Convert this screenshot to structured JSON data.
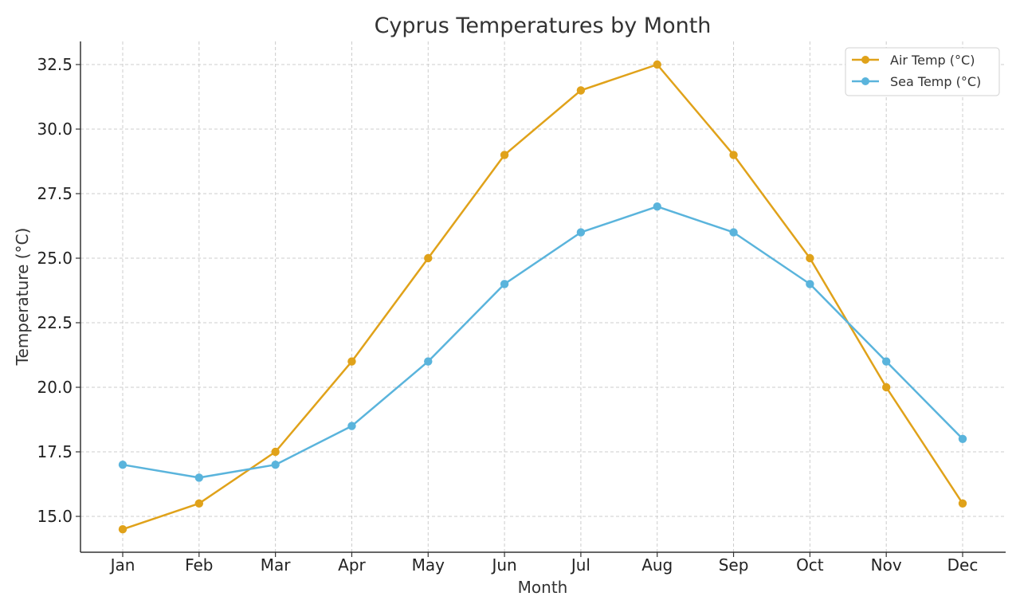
{
  "chart_data": {
    "type": "line",
    "title": "Cyprus Temperatures by Month",
    "xlabel": "Month",
    "ylabel": "Temperature (°C)",
    "categories": [
      "Jan",
      "Feb",
      "Mar",
      "Apr",
      "May",
      "Jun",
      "Jul",
      "Aug",
      "Sep",
      "Oct",
      "Nov",
      "Dec"
    ],
    "series": [
      {
        "name": "Air Temp (°C)",
        "color": "#E0A21A",
        "values": [
          14.5,
          15.5,
          17.5,
          21,
          25,
          29,
          31.5,
          32.5,
          29,
          25,
          20,
          15.5
        ]
      },
      {
        "name": "Sea Temp (°C)",
        "color": "#5AB4DC",
        "values": [
          17,
          16.5,
          17,
          18.5,
          21,
          24,
          26,
          27,
          26,
          24,
          21,
          18
        ]
      }
    ],
    "ylim": [
      13.5,
      33.5
    ],
    "yticks": [
      "15.0",
      "17.5",
      "20.0",
      "22.5",
      "25.0",
      "27.5",
      "30.0",
      "32.5"
    ],
    "grid": true,
    "legend_position": "top-right"
  }
}
